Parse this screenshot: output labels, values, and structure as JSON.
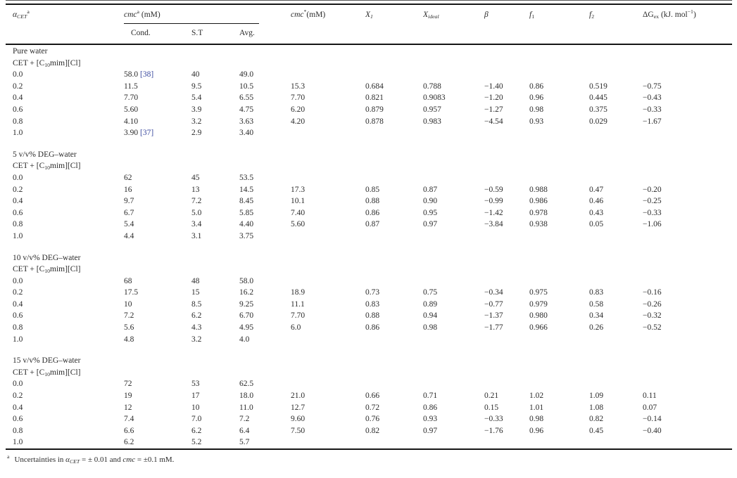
{
  "table": {
    "headers": {
      "alpha": {
        "sym": "α",
        "sub": "CET",
        "sup": "a"
      },
      "cmc_group": {
        "base": "cmc",
        "sup": "a",
        "unit": " (mM)"
      },
      "cond": "Cond.",
      "st": "S.T",
      "avg": "Avg.",
      "cmc_star": {
        "base": "cmc",
        "sup": "*",
        "unit": "(mM)"
      },
      "x1": {
        "base": "X",
        "sub": "1"
      },
      "xideal": {
        "base": "X",
        "sub": "ideal"
      },
      "beta": "β",
      "f1": {
        "base": "f",
        "sub": "1"
      },
      "f2": {
        "base": "f",
        "sub": "2"
      },
      "dgex": {
        "base": "ΔG",
        "sub": "ex",
        "unit": " (kJ. mol",
        "sup": "−1",
        "close": ")"
      }
    },
    "compound": {
      "p1": "CET + [C",
      "sub": "10",
      "p2": "mim][Cl]"
    },
    "sections": [
      {
        "title": "Pure water",
        "rows": [
          {
            "a": "0.0",
            "cond": "58.0",
            "ref": "[38]",
            "st": "40",
            "avg": "49.0",
            "cmc": "",
            "x1": "",
            "xi": "",
            "b": "",
            "f1": "",
            "f2": "",
            "dg": ""
          },
          {
            "a": "0.2",
            "cond": "11.5",
            "ref": "",
            "st": "9.5",
            "avg": "10.5",
            "cmc": "15.3",
            "x1": "0.684",
            "xi": "0.788",
            "b": "−1.40",
            "f1": "0.86",
            "f2": "0.519",
            "dg": "−0.75"
          },
          {
            "a": "0.4",
            "cond": "7.70",
            "ref": "",
            "st": "5.4",
            "avg": "6.55",
            "cmc": "7.70",
            "x1": "0.821",
            "xi": "0.9083",
            "b": "−1.20",
            "f1": "0.96",
            "f2": "0.445",
            "dg": "−0.43"
          },
          {
            "a": "0.6",
            "cond": "5.60",
            "ref": "",
            "st": "3.9",
            "avg": "4.75",
            "cmc": "6.20",
            "x1": "0.879",
            "xi": "0.957",
            "b": "−1.27",
            "f1": "0.98",
            "f2": "0.375",
            "dg": "−0.33"
          },
          {
            "a": "0.8",
            "cond": "4.10",
            "ref": "",
            "st": "3.2",
            "avg": "3.63",
            "cmc": "4.20",
            "x1": "0.878",
            "xi": "0.983",
            "b": "−4.54",
            "f1": "0.93",
            "f2": "0.029",
            "dg": "−1.67"
          },
          {
            "a": "1.0",
            "cond": "3.90",
            "ref": "[37]",
            "st": "2.9",
            "avg": "3.40",
            "cmc": "",
            "x1": "",
            "xi": "",
            "b": "",
            "f1": "",
            "f2": "",
            "dg": ""
          }
        ]
      },
      {
        "title": "5 v/v% DEG–water",
        "rows": [
          {
            "a": "0.0",
            "cond": "62",
            "ref": "",
            "st": "45",
            "avg": "53.5",
            "cmc": "",
            "x1": "",
            "xi": "",
            "b": "",
            "f1": "",
            "f2": "",
            "dg": ""
          },
          {
            "a": "0.2",
            "cond": "16",
            "ref": "",
            "st": "13",
            "avg": "14.5",
            "cmc": "17.3",
            "x1": "0.85",
            "xi": "0.87",
            "b": "−0.59",
            "f1": "0.988",
            "f2": "0.47",
            "dg": "−0.20"
          },
          {
            "a": "0.4",
            "cond": "9.7",
            "ref": "",
            "st": "7.2",
            "avg": "8.45",
            "cmc": "10.1",
            "x1": "0.88",
            "xi": "0.90",
            "b": "−0.99",
            "f1": "0.986",
            "f2": "0.46",
            "dg": "−0.25"
          },
          {
            "a": "0.6",
            "cond": "6.7",
            "ref": "",
            "st": "5.0",
            "avg": "5.85",
            "cmc": "7.40",
            "x1": "0.86",
            "xi": "0.95",
            "b": "−1.42",
            "f1": "0.978",
            "f2": "0.43",
            "dg": "−0.33"
          },
          {
            "a": "0.8",
            "cond": "5.4",
            "ref": "",
            "st": "3.4",
            "avg": "4.40",
            "cmc": "5.60",
            "x1": "0.87",
            "xi": "0.97",
            "b": "−3.84",
            "f1": "0.938",
            "f2": "0.05",
            "dg": "−1.06"
          },
          {
            "a": "1.0",
            "cond": "4.4",
            "ref": "",
            "st": "3.1",
            "avg": "3.75",
            "cmc": "",
            "x1": "",
            "xi": "",
            "b": "",
            "f1": "",
            "f2": "",
            "dg": ""
          }
        ]
      },
      {
        "title": "10 v/v% DEG–water",
        "rows": [
          {
            "a": "0.0",
            "cond": "68",
            "ref": "",
            "st": "48",
            "avg": "58.0",
            "cmc": "",
            "x1": "",
            "xi": "",
            "b": "",
            "f1": "",
            "f2": "",
            "dg": ""
          },
          {
            "a": "0.2",
            "cond": "17.5",
            "ref": "",
            "st": "15",
            "avg": "16.2",
            "cmc": "18.9",
            "x1": "0.73",
            "xi": "0.75",
            "b": "−0.34",
            "f1": "0.975",
            "f2": "0.83",
            "dg": "−0.16"
          },
          {
            "a": "0.4",
            "cond": "10",
            "ref": "",
            "st": "8.5",
            "avg": "9.25",
            "cmc": "11.1",
            "x1": "0.83",
            "xi": "0.89",
            "b": "−0.77",
            "f1": "0.979",
            "f2": "0.58",
            "dg": "−0.26"
          },
          {
            "a": "0.6",
            "cond": "7.2",
            "ref": "",
            "st": "6.2",
            "avg": "6.70",
            "cmc": "7.70",
            "x1": "0.88",
            "xi": "0.94",
            "b": "−1.37",
            "f1": "0.980",
            "f2": "0.34",
            "dg": "−0.32"
          },
          {
            "a": "0.8",
            "cond": "5.6",
            "ref": "",
            "st": "4.3",
            "avg": "4.95",
            "cmc": "6.0",
            "x1": "0.86",
            "xi": "0.98",
            "b": "−1.77",
            "f1": "0.966",
            "f2": "0.26",
            "dg": "−0.52"
          },
          {
            "a": "1.0",
            "cond": "4.8",
            "ref": "",
            "st": "3.2",
            "avg": "4.0",
            "cmc": "",
            "x1": "",
            "xi": "",
            "b": "",
            "f1": "",
            "f2": "",
            "dg": ""
          }
        ]
      },
      {
        "title": "15 v/v% DEG–water",
        "rows": [
          {
            "a": "0.0",
            "cond": "72",
            "ref": "",
            "st": "53",
            "avg": "62.5",
            "cmc": "",
            "x1": "",
            "xi": "",
            "b": "",
            "f1": "",
            "f2": "",
            "dg": ""
          },
          {
            "a": "0.2",
            "cond": "19",
            "ref": "",
            "st": "17",
            "avg": "18.0",
            "cmc": "21.0",
            "x1": "0.66",
            "xi": "0.71",
            "b": "0.21",
            "f1": "1.02",
            "f2": "1.09",
            "dg": "0.11"
          },
          {
            "a": "0.4",
            "cond": "12",
            "ref": "",
            "st": "10",
            "avg": "11.0",
            "cmc": "12.7",
            "x1": "0.72",
            "xi": "0.86",
            "b": "0.15",
            "f1": "1.01",
            "f2": "1.08",
            "dg": "0.07"
          },
          {
            "a": "0.6",
            "cond": "7.4",
            "ref": "",
            "st": "7.0",
            "avg": "7.2",
            "cmc": "9.60",
            "x1": "0.76",
            "xi": "0.93",
            "b": "−0.33",
            "f1": "0.98",
            "f2": "0.82",
            "dg": "−0.14"
          },
          {
            "a": "0.8",
            "cond": "6.6",
            "ref": "",
            "st": "6.2",
            "avg": "6.4",
            "cmc": "7.50",
            "x1": "0.82",
            "xi": "0.97",
            "b": "−1.76",
            "f1": "0.96",
            "f2": "0.45",
            "dg": "−0.40"
          },
          {
            "a": "1.0",
            "cond": "6.2",
            "ref": "",
            "st": "5.2",
            "avg": "5.7",
            "cmc": "",
            "x1": "",
            "xi": "",
            "b": "",
            "f1": "",
            "f2": "",
            "dg": ""
          }
        ]
      }
    ],
    "footnote": {
      "sup": "a",
      "t1": "Uncertainties in ",
      "alpha": "α",
      "alpha_sub": "CET",
      "t2": " = ± 0.01 and ",
      "cmc": "cmc",
      "t3": " = ±0.1 mM."
    },
    "colors": {
      "citation_blue": "#3b4a9f",
      "rule_black": "#161616",
      "text": "#2b2b2b"
    }
  }
}
